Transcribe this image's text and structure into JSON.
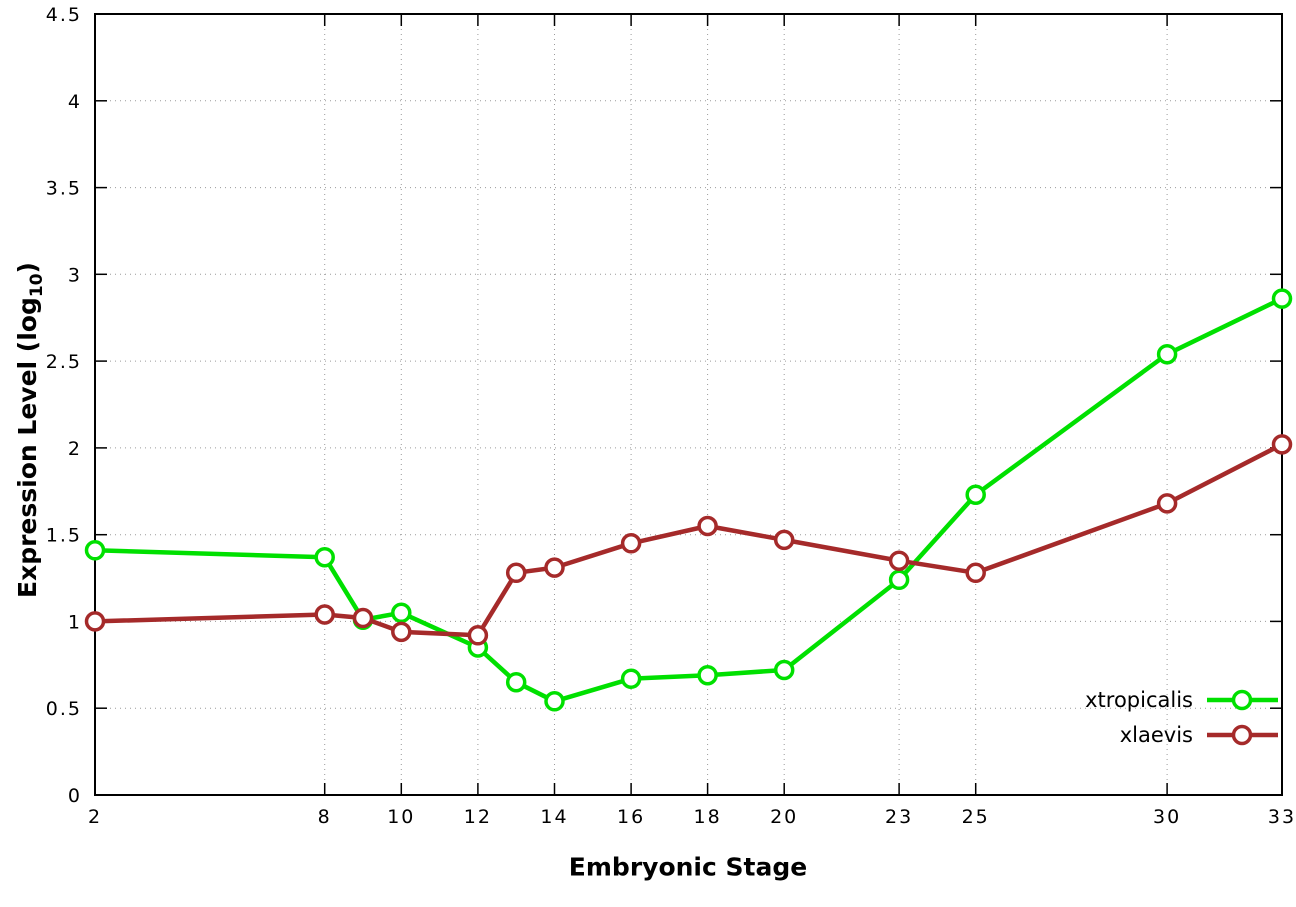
{
  "chart_data": {
    "type": "line",
    "title": "",
    "xlabel": "Embryonic Stage",
    "ylabel": "Expression Level (log10)",
    "ylabel_parts": {
      "prefix": "Expression Level (log",
      "sub": "10",
      "suffix": ")"
    },
    "xlim": [
      2,
      33
    ],
    "ylim": [
      0,
      4.5
    ],
    "xticks": [
      2,
      8,
      10,
      12,
      14,
      16,
      18,
      20,
      23,
      25,
      30,
      33
    ],
    "yticks": [
      0,
      0.5,
      1,
      1.5,
      2,
      2.5,
      3,
      3.5,
      4,
      4.5
    ],
    "grid": true,
    "legend_position": "bottom-right",
    "background": "#ffffff",
    "series": [
      {
        "name": "xtropicalis",
        "color": "#00e000",
        "points": [
          [
            2,
            1.41
          ],
          [
            8,
            1.37
          ],
          [
            9,
            1.01
          ],
          [
            10,
            1.05
          ],
          [
            12,
            0.85
          ],
          [
            13,
            0.65
          ],
          [
            14,
            0.54
          ],
          [
            16,
            0.67
          ],
          [
            18,
            0.69
          ],
          [
            20,
            0.72
          ],
          [
            23,
            1.24
          ],
          [
            25,
            1.73
          ],
          [
            30,
            2.54
          ],
          [
            33,
            2.86
          ]
        ]
      },
      {
        "name": "xlaevis",
        "color": "#a52a2a",
        "points": [
          [
            2,
            1.0
          ],
          [
            8,
            1.04
          ],
          [
            9,
            1.02
          ],
          [
            10,
            0.94
          ],
          [
            12,
            0.92
          ],
          [
            13,
            1.28
          ],
          [
            14,
            1.31
          ],
          [
            16,
            1.45
          ],
          [
            18,
            1.55
          ],
          [
            20,
            1.47
          ],
          [
            23,
            1.35
          ],
          [
            25,
            1.28
          ],
          [
            30,
            1.68
          ],
          [
            33,
            2.02
          ]
        ]
      }
    ]
  }
}
